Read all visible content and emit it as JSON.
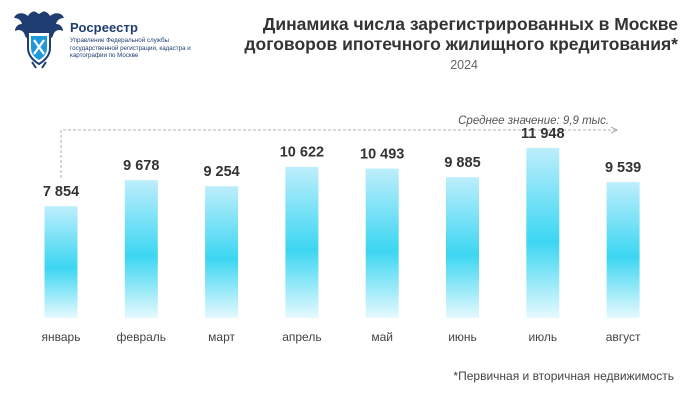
{
  "brand": {
    "name": "Росреестр",
    "subtitle": "Управление Федеральной службы государственной регистрации, кадастра и картографии по Москве"
  },
  "header": {
    "title_line1": "Динамика числа зарегистрированных в Москве",
    "title_line2": "договоров ипотечного жилищного кредитования*",
    "year": "2024"
  },
  "footnote": "*Первичная и вторичная недвижимость",
  "colors": {
    "bar_top": "#bdeefc",
    "bar_mid": "#3cd6f2",
    "bar_bottom": "#e6f9fe",
    "text": "#333333",
    "brand": "#1f3d70"
  },
  "chart_data": {
    "type": "bar",
    "title": "Динамика числа зарегистрированных в Москве договоров ипотечного жилищного кредитования*",
    "subtitle": "2024",
    "categories": [
      "январь",
      "февраль",
      "март",
      "апрель",
      "май",
      "июнь",
      "июль",
      "август"
    ],
    "values": [
      7854,
      9678,
      9254,
      10622,
      10493,
      9885,
      11948,
      9539
    ],
    "value_labels": [
      "7 854",
      "9 678",
      "9 254",
      "10 622",
      "10 493",
      "9 885",
      "11 948",
      "9 539"
    ],
    "ylim": [
      0,
      12500
    ],
    "annotation": "Среднее значение: 9,9 тыс.",
    "xlabel": "",
    "ylabel": "",
    "grid": false,
    "legend": "none"
  }
}
